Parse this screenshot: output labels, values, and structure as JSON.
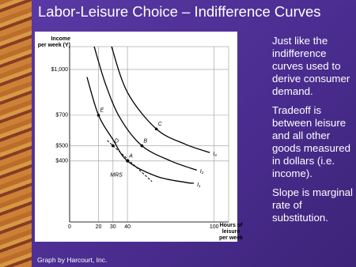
{
  "slide_title": "Labor-Leisure Choice – Indifference Curves",
  "bullets": [
    "Just like the indifference curves used to derive consumer demand.",
    "Tradeoff is between leisure and all other goods measured in dollars (i.e. income).",
    "Slope is marginal rate of substitution."
  ],
  "credit": "Graph by Harcourt, Inc.",
  "chart_data": {
    "type": "line",
    "ylabel": [
      "Income",
      "per week (Y)"
    ],
    "xlabel": [
      "Hours of",
      "leisure",
      "per week"
    ],
    "xlim": [
      0,
      110
    ],
    "ylim": [
      0,
      1150
    ],
    "xticks": [
      0,
      20,
      30,
      40,
      100
    ],
    "yticks": [
      {
        "value": 400,
        "label": "$400"
      },
      {
        "value": 500,
        "label": "$500"
      },
      {
        "value": 700,
        "label": "$700"
      },
      {
        "value": 1000,
        "label": "$1,000"
      }
    ],
    "grid": true,
    "series": [
      {
        "name": "I₁",
        "color": "#000000",
        "x": [
          12,
          20,
          30,
          40,
          60,
          80,
          86
        ],
        "values": [
          950,
          700,
          540,
          400,
          300,
          260,
          254
        ]
      },
      {
        "name": "I₂",
        "color": "#000000",
        "x": [
          17,
          25,
          35,
          50,
          70,
          88
        ],
        "values": [
          1150,
          900,
          680,
          500,
          400,
          340
        ]
      },
      {
        "name": "I₃",
        "color": "#000000",
        "x": [
          29,
          40,
          60,
          80,
          97
        ],
        "values": [
          1150,
          850,
          610,
          510,
          455
        ]
      }
    ],
    "points": [
      {
        "label": "E",
        "x": 20,
        "y": 700
      },
      {
        "label": "D",
        "x": 30,
        "y": 500
      },
      {
        "label": "A",
        "x": 40,
        "y": 400
      },
      {
        "label": "B",
        "x": 50,
        "y": 500
      },
      {
        "label": "C",
        "x": 60,
        "y": 610
      }
    ],
    "mrs_line": {
      "label": "MRS",
      "x": [
        26,
        57
      ],
      "y": [
        535,
        265
      ]
    }
  }
}
